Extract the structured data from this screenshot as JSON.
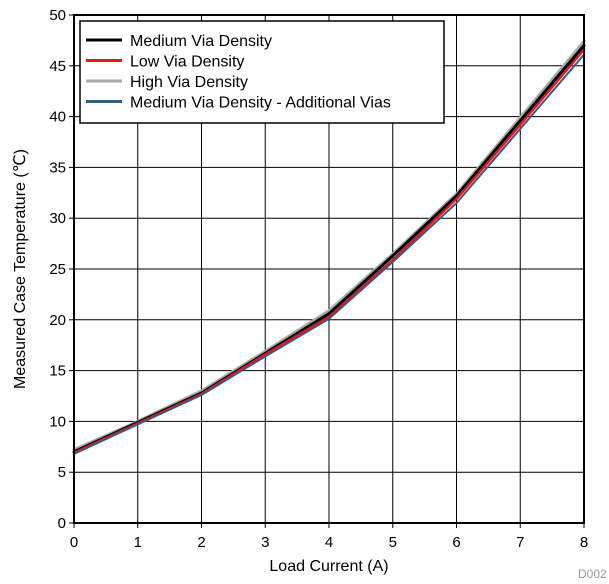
{
  "chart_data": {
    "type": "line",
    "title": "",
    "xlabel": "Load Current (A)",
    "ylabel": "Measured Case Temperature (℃)",
    "xlim": [
      0,
      8
    ],
    "ylim": [
      0,
      50
    ],
    "xticks": [
      0,
      1,
      2,
      3,
      4,
      5,
      6,
      7,
      8
    ],
    "yticks": [
      0,
      5,
      10,
      15,
      20,
      25,
      30,
      35,
      40,
      45,
      50
    ],
    "grid": true,
    "legend_position": "top-left",
    "watermark": "D002",
    "x": [
      0,
      1,
      2,
      3,
      4,
      5,
      6,
      7,
      8
    ],
    "series": [
      {
        "name": "Medium Via Density",
        "color": "#000000",
        "values": [
          7.0,
          9.9,
          12.8,
          16.7,
          20.6,
          26.3,
          32.2,
          39.6,
          47.0
        ]
      },
      {
        "name": "Low Via Density",
        "color": "#e8141c",
        "values": [
          6.9,
          9.8,
          12.7,
          16.6,
          20.3,
          25.9,
          31.9,
          39.2,
          46.6
        ]
      },
      {
        "name": "High Via Density",
        "color": "#a8a8a8",
        "values": [
          7.2,
          10.0,
          13.0,
          16.9,
          20.9,
          26.5,
          32.4,
          39.9,
          47.4
        ]
      },
      {
        "name": "Medium Via Density - Additional Vias",
        "color": "#2f5f80",
        "values": [
          6.8,
          9.7,
          12.6,
          16.4,
          20.1,
          25.7,
          31.5,
          38.8,
          46.1
        ]
      }
    ]
  }
}
